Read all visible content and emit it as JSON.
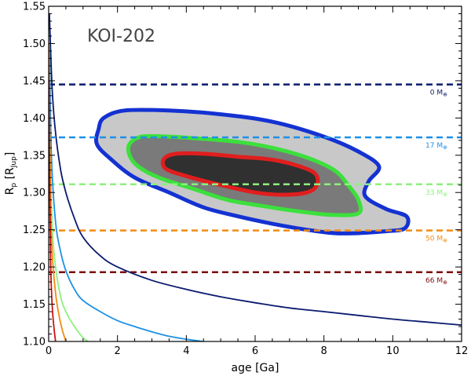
{
  "chart_data": {
    "type": "contour",
    "title": "KOI-202",
    "xlabel": "age [Ga]",
    "ylabel": "R_p [R_Jup]",
    "ylabel_main": "R",
    "ylabel_sub1": "p",
    "ylabel_mid": " [R",
    "ylabel_sub2": "Jup",
    "ylabel_end": "]",
    "xlim": [
      0,
      12
    ],
    "ylim": [
      1.1,
      1.55
    ],
    "xticks": [
      0,
      2,
      4,
      6,
      8,
      10,
      12
    ],
    "xtick_labels": [
      "0",
      "2",
      "4",
      "6",
      "8",
      "10",
      "12"
    ],
    "yticks": [
      1.1,
      1.15,
      1.2,
      1.25,
      1.3,
      1.35,
      1.4,
      1.45,
      1.5,
      1.55
    ],
    "ytick_labels": [
      "1.10",
      "1.15",
      "1.20",
      "1.25",
      "1.30",
      "1.35",
      "1.40",
      "1.45",
      "1.50",
      "1.55"
    ],
    "horizontal_lines": [
      {
        "name": "0 M_earth",
        "label": "0 M",
        "sub": "⊕",
        "y": 1.445,
        "color": "#0a1a6e"
      },
      {
        "name": "17 M_earth",
        "label": "17 M",
        "sub": "⊕",
        "y": 1.374,
        "color": "#1e90e6"
      },
      {
        "name": "33 M_earth",
        "label": "33 M",
        "sub": "⊕",
        "y": 1.311,
        "color": "#8ef07e"
      },
      {
        "name": "50 M_earth",
        "label": "50 M",
        "sub": "⊕",
        "y": 1.249,
        "color": "#f08c14"
      },
      {
        "name": "66 M_earth",
        "label": "66 M",
        "sub": "⊕",
        "y": 1.193,
        "color": "#7a0a0a"
      }
    ],
    "evolution_curves": [
      {
        "name": "0 M_earth",
        "color": "#0a1a6e",
        "points": [
          [
            0.02,
            1.54
          ],
          [
            0.1,
            1.44
          ],
          [
            0.2,
            1.38
          ],
          [
            0.35,
            1.33
          ],
          [
            0.5,
            1.3
          ],
          [
            0.75,
            1.265
          ],
          [
            1.0,
            1.24
          ],
          [
            1.5,
            1.215
          ],
          [
            2.0,
            1.2
          ],
          [
            3.0,
            1.182
          ],
          [
            4.0,
            1.17
          ],
          [
            5.0,
            1.16
          ],
          [
            6.0,
            1.152
          ],
          [
            7.0,
            1.145
          ],
          [
            8.0,
            1.14
          ],
          [
            9.0,
            1.135
          ],
          [
            10.0,
            1.13
          ],
          [
            11.0,
            1.126
          ],
          [
            12.0,
            1.122
          ]
        ]
      },
      {
        "name": "17 M_earth",
        "color": "#1e90e6",
        "points": [
          [
            0.02,
            1.5
          ],
          [
            0.08,
            1.35
          ],
          [
            0.2,
            1.26
          ],
          [
            0.35,
            1.22
          ],
          [
            0.5,
            1.195
          ],
          [
            0.75,
            1.17
          ],
          [
            1.0,
            1.155
          ],
          [
            1.5,
            1.14
          ],
          [
            2.0,
            1.128
          ],
          [
            2.5,
            1.12
          ],
          [
            3.0,
            1.113
          ],
          [
            3.5,
            1.107
          ],
          [
            4.0,
            1.103
          ],
          [
            4.5,
            1.1
          ]
        ]
      },
      {
        "name": "33 M_earth",
        "color": "#8ef07e",
        "points": [
          [
            0.02,
            1.4
          ],
          [
            0.1,
            1.26
          ],
          [
            0.2,
            1.2
          ],
          [
            0.35,
            1.16
          ],
          [
            0.5,
            1.14
          ],
          [
            0.75,
            1.12
          ],
          [
            1.0,
            1.105
          ],
          [
            1.15,
            1.1
          ]
        ]
      },
      {
        "name": "50 M_earth",
        "color": "#f08c14",
        "points": [
          [
            0.01,
            1.5
          ],
          [
            0.05,
            1.3
          ],
          [
            0.1,
            1.22
          ],
          [
            0.2,
            1.165
          ],
          [
            0.3,
            1.135
          ],
          [
            0.4,
            1.115
          ],
          [
            0.5,
            1.1
          ]
        ]
      },
      {
        "name": "66 M_earth",
        "color": "#c81414",
        "points": [
          [
            0.01,
            1.45
          ],
          [
            0.03,
            1.3
          ],
          [
            0.06,
            1.2
          ],
          [
            0.1,
            1.15
          ],
          [
            0.15,
            1.12
          ],
          [
            0.2,
            1.1
          ]
        ]
      }
    ],
    "confidence_regions": [
      {
        "name": "outer",
        "fill": "#c8c8c8",
        "stroke": "#1432d2",
        "points": [
          [
            1.45,
            1.385
          ],
          [
            1.6,
            1.4
          ],
          [
            2.2,
            1.41
          ],
          [
            3.5,
            1.41
          ],
          [
            5.0,
            1.405
          ],
          [
            6.5,
            1.395
          ],
          [
            8.0,
            1.375
          ],
          [
            9.0,
            1.355
          ],
          [
            9.6,
            1.335
          ],
          [
            9.3,
            1.315
          ],
          [
            9.2,
            1.295
          ],
          [
            9.8,
            1.278
          ],
          [
            10.4,
            1.268
          ],
          [
            10.35,
            1.252
          ],
          [
            9.8,
            1.248
          ],
          [
            8.5,
            1.245
          ],
          [
            7.5,
            1.25
          ],
          [
            6.5,
            1.258
          ],
          [
            5.5,
            1.268
          ],
          [
            4.5,
            1.28
          ],
          [
            3.5,
            1.3
          ],
          [
            2.5,
            1.32
          ],
          [
            1.8,
            1.345
          ],
          [
            1.4,
            1.365
          ]
        ]
      },
      {
        "name": "middle",
        "fill": "#7a7a7a",
        "stroke": "#3ce03c",
        "points": [
          [
            2.35,
            1.365
          ],
          [
            2.7,
            1.375
          ],
          [
            3.5,
            1.375
          ],
          [
            4.5,
            1.372
          ],
          [
            5.5,
            1.368
          ],
          [
            6.5,
            1.36
          ],
          [
            7.5,
            1.347
          ],
          [
            8.3,
            1.33
          ],
          [
            8.7,
            1.31
          ],
          [
            9.0,
            1.29
          ],
          [
            9.0,
            1.272
          ],
          [
            8.2,
            1.27
          ],
          [
            7.2,
            1.275
          ],
          [
            6.2,
            1.282
          ],
          [
            5.2,
            1.29
          ],
          [
            4.2,
            1.305
          ],
          [
            3.2,
            1.32
          ],
          [
            2.6,
            1.335
          ],
          [
            2.35,
            1.35
          ]
        ]
      },
      {
        "name": "inner",
        "fill": "#303030",
        "stroke": "#e01e1e",
        "points": [
          [
            3.35,
            1.345
          ],
          [
            3.7,
            1.352
          ],
          [
            4.5,
            1.352
          ],
          [
            5.5,
            1.348
          ],
          [
            6.5,
            1.344
          ],
          [
            7.3,
            1.335
          ],
          [
            7.75,
            1.325
          ],
          [
            7.8,
            1.31
          ],
          [
            7.5,
            1.3
          ],
          [
            6.8,
            1.297
          ],
          [
            6.0,
            1.3
          ],
          [
            5.0,
            1.31
          ],
          [
            4.0,
            1.322
          ],
          [
            3.4,
            1.332
          ]
        ]
      }
    ]
  }
}
